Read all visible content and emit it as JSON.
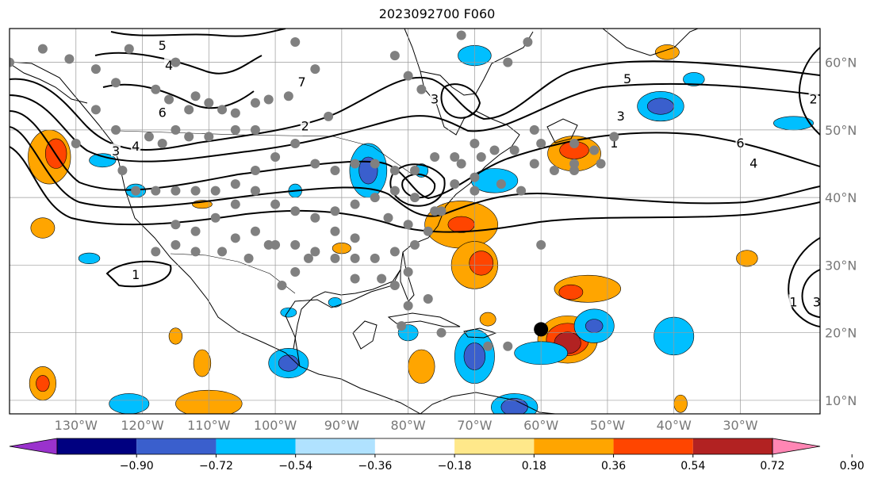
{
  "title": "2023092700 F060",
  "map": {
    "lon_range": [
      -140,
      -18
    ],
    "lat_range": [
      8,
      65
    ],
    "gridlines": true,
    "lon_labels": [
      "130°W",
      "120°W",
      "110°W",
      "100°W",
      "90°W",
      "80°W",
      "70°W",
      "60°W",
      "50°W",
      "40°W",
      "30°W"
    ],
    "lon_values": [
      -130,
      -120,
      -110,
      -100,
      -90,
      -80,
      -70,
      -60,
      -50,
      -40,
      -30
    ],
    "lat_labels": [
      "10°N",
      "20°N",
      "30°N",
      "40°N",
      "50°N",
      "60°N"
    ],
    "lat_values": [
      10,
      20,
      30,
      40,
      50,
      60
    ]
  },
  "contour_labels": [
    {
      "text": "5",
      "lon": -117,
      "lat": 62.4
    },
    {
      "text": "4",
      "lon": -116,
      "lat": 59.5
    },
    {
      "text": "6",
      "lon": -117,
      "lat": 52.5
    },
    {
      "text": "3",
      "lon": -124,
      "lat": 46.8
    },
    {
      "text": "4",
      "lon": -121,
      "lat": 47.5
    },
    {
      "text": "2",
      "lon": -95.5,
      "lat": 50.5
    },
    {
      "text": "7",
      "lon": -96,
      "lat": 57
    },
    {
      "text": "3",
      "lon": -76,
      "lat": 54.5
    },
    {
      "text": "5",
      "lon": -47,
      "lat": 57.5
    },
    {
      "text": "3",
      "lon": -48,
      "lat": 52
    },
    {
      "text": "1",
      "lon": -49,
      "lat": 48
    },
    {
      "text": "6",
      "lon": -30,
      "lat": 48
    },
    {
      "text": "4",
      "lon": -28,
      "lat": 45
    },
    {
      "text": "2",
      "lon": -19,
      "lat": 54.5
    },
    {
      "text": "1",
      "lon": -121,
      "lat": 28.5
    },
    {
      "text": "3",
      "lon": -18.5,
      "lat": 24.5
    },
    {
      "text": "1",
      "lon": -22,
      "lat": 24.5
    }
  ],
  "stations": [
    [
      -140,
      60
    ],
    [
      -135,
      62
    ],
    [
      -131,
      60.5
    ],
    [
      -127,
      59
    ],
    [
      -124,
      57
    ],
    [
      -122,
      62
    ],
    [
      -118,
      56
    ],
    [
      -115,
      60
    ],
    [
      -116,
      54.5
    ],
    [
      -112,
      55
    ],
    [
      -113,
      53
    ],
    [
      -110,
      54
    ],
    [
      -108,
      53
    ],
    [
      -106,
      52.5
    ],
    [
      -103,
      54
    ],
    [
      -101,
      54.5
    ],
    [
      -98,
      55
    ],
    [
      -97,
      63
    ],
    [
      -94,
      59
    ],
    [
      -92,
      52
    ],
    [
      -103,
      50
    ],
    [
      -106,
      50
    ],
    [
      -110,
      49
    ],
    [
      -113,
      49
    ],
    [
      -115,
      50
    ],
    [
      -117,
      48
    ],
    [
      -119,
      49
    ],
    [
      -124,
      50
    ],
    [
      -127,
      53
    ],
    [
      -130,
      48
    ],
    [
      -123,
      44
    ],
    [
      -121,
      41
    ],
    [
      -118,
      41
    ],
    [
      -115,
      41
    ],
    [
      -112,
      41
    ],
    [
      -109,
      41
    ],
    [
      -106,
      42
    ],
    [
      -103,
      44
    ],
    [
      -100,
      46
    ],
    [
      -97,
      48
    ],
    [
      -94,
      45
    ],
    [
      -91,
      44
    ],
    [
      -88,
      45
    ],
    [
      -85,
      45
    ],
    [
      -82,
      44
    ],
    [
      -79,
      44
    ],
    [
      -76,
      46
    ],
    [
      -73,
      46
    ],
    [
      -70,
      48
    ],
    [
      -67,
      47
    ],
    [
      -64,
      47
    ],
    [
      -61,
      45
    ],
    [
      -58,
      44
    ],
    [
      -55,
      45
    ],
    [
      -52,
      47
    ],
    [
      -49,
      49
    ],
    [
      -61,
      50
    ],
    [
      -55,
      48
    ],
    [
      -70,
      43
    ],
    [
      -73,
      42
    ],
    [
      -70,
      41
    ],
    [
      -76,
      38
    ],
    [
      -79,
      40
    ],
    [
      -82,
      41
    ],
    [
      -85,
      40
    ],
    [
      -88,
      39
    ],
    [
      -91,
      38
    ],
    [
      -94,
      37
    ],
    [
      -97,
      38
    ],
    [
      -100,
      39
    ],
    [
      -103,
      41
    ],
    [
      -106,
      39
    ],
    [
      -109,
      37
    ],
    [
      -112,
      35
    ],
    [
      -115,
      33
    ],
    [
      -118,
      32
    ],
    [
      -106,
      34
    ],
    [
      -103,
      35
    ],
    [
      -100,
      33
    ],
    [
      -97,
      33
    ],
    [
      -94,
      32
    ],
    [
      -91,
      31
    ],
    [
      -88,
      31
    ],
    [
      -85,
      31
    ],
    [
      -82,
      32
    ],
    [
      -79,
      33
    ],
    [
      -77,
      35
    ],
    [
      -75,
      38
    ],
    [
      -80,
      29
    ],
    [
      -82,
      27
    ],
    [
      -84,
      28
    ],
    [
      -88,
      34
    ],
    [
      -91,
      35
    ],
    [
      -95,
      31
    ],
    [
      -97,
      29
    ],
    [
      -99,
      27
    ],
    [
      -101,
      33
    ],
    [
      -104,
      31
    ],
    [
      -108,
      32
    ],
    [
      -112,
      32
    ],
    [
      -115,
      36
    ],
    [
      -88,
      28
    ],
    [
      -80,
      24
    ],
    [
      -77,
      25
    ],
    [
      -81,
      21
    ],
    [
      -75,
      20
    ],
    [
      -68,
      18
    ],
    [
      -65,
      18
    ],
    [
      -60,
      33
    ],
    [
      -55,
      44
    ],
    [
      -51,
      45
    ],
    [
      -83,
      37
    ],
    [
      -80,
      36
    ],
    [
      -72,
      45
    ],
    [
      -69,
      46
    ],
    [
      -66,
      42
    ],
    [
      -63,
      41
    ],
    [
      -60,
      48
    ],
    [
      -78,
      56
    ],
    [
      -72,
      64
    ],
    [
      -65,
      60
    ],
    [
      -62,
      63
    ],
    [
      -80,
      58
    ],
    [
      -82,
      61
    ]
  ],
  "marker": {
    "lon": -60,
    "lat": 20.5
  },
  "colorbar": {
    "ticks": [
      "−0.90",
      "−0.72",
      "−0.54",
      "−0.36",
      "−0.18",
      "0.18",
      "0.36",
      "0.54",
      "0.72",
      "0.90"
    ],
    "colors": [
      "#9a32cd",
      "#000080",
      "#3a5fcd",
      "#00bfff",
      "#b0e2ff",
      "#ffffff",
      "#ffe88a",
      "#ffa500",
      "#ff4500",
      "#b22222",
      "#ff86b4"
    ]
  },
  "anomalies": [
    {
      "color": "#ffa500",
      "lon": -134,
      "lat": 46,
      "rx": 3.2,
      "ry": 4
    },
    {
      "color": "#ff4500",
      "lon": -133,
      "lat": 46.5,
      "rx": 1.6,
      "ry": 2.2
    },
    {
      "color": "#ffa500",
      "lon": -135,
      "lat": 35.5,
      "rx": 1.8,
      "ry": 1.5
    },
    {
      "color": "#00bfff",
      "lon": -128,
      "lat": 31,
      "rx": 1.6,
      "ry": 0.8
    },
    {
      "color": "#00bfff",
      "lon": -126,
      "lat": 45.5,
      "rx": 2,
      "ry": 1
    },
    {
      "color": "#00bfff",
      "lon": -121,
      "lat": 41,
      "rx": 1.5,
      "ry": 1
    },
    {
      "color": "#ffa500",
      "lon": -111,
      "lat": 39,
      "rx": 1.5,
      "ry": 0.6
    },
    {
      "color": "#00bfff",
      "lon": -97,
      "lat": 41,
      "rx": 1,
      "ry": 1
    },
    {
      "color": "#00bfff",
      "lon": -86,
      "lat": 44,
      "rx": 2.8,
      "ry": 4
    },
    {
      "color": "#3a5fcd",
      "lon": -86,
      "lat": 44,
      "rx": 1.4,
      "ry": 2
    },
    {
      "color": "#00bfff",
      "lon": -78,
      "lat": 44,
      "rx": 1,
      "ry": 1
    },
    {
      "color": "#00bfff",
      "lon": -70,
      "lat": 61,
      "rx": 2.5,
      "ry": 1.5
    },
    {
      "color": "#ffa500",
      "lon": -41,
      "lat": 61.5,
      "rx": 1.8,
      "ry": 1.1
    },
    {
      "color": "#00bfff",
      "lon": -37,
      "lat": 57.5,
      "rx": 1.6,
      "ry": 1
    },
    {
      "color": "#00bfff",
      "lon": -42,
      "lat": 53.5,
      "rx": 3.5,
      "ry": 2.2
    },
    {
      "color": "#3a5fcd",
      "lon": -42,
      "lat": 53.5,
      "rx": 2,
      "ry": 1.2
    },
    {
      "color": "#00bfff",
      "lon": -22,
      "lat": 51,
      "rx": 3,
      "ry": 1
    },
    {
      "color": "#ffa500",
      "lon": -55,
      "lat": 46.5,
      "rx": 4,
      "ry": 2.6
    },
    {
      "color": "#ff4500",
      "lon": -55,
      "lat": 47,
      "rx": 2.2,
      "ry": 1.3
    },
    {
      "color": "#00bfff",
      "lon": -67,
      "lat": 42.5,
      "rx": 3.5,
      "ry": 1.8
    },
    {
      "color": "#ffa500",
      "lon": -72,
      "lat": 36,
      "rx": 5.5,
      "ry": 3.5
    },
    {
      "color": "#ff4500",
      "lon": -72,
      "lat": 36,
      "rx": 2,
      "ry": 1.2
    },
    {
      "color": "#ffa500",
      "lon": -70,
      "lat": 30,
      "rx": 3.5,
      "ry": 3.5
    },
    {
      "color": "#ff4500",
      "lon": -69,
      "lat": 30.3,
      "rx": 1.8,
      "ry": 1.8
    },
    {
      "color": "#ffa500",
      "lon": -68,
      "lat": 22,
      "rx": 1.2,
      "ry": 1
    },
    {
      "color": "#ffa500",
      "lon": -53,
      "lat": 26.5,
      "rx": 5,
      "ry": 2
    },
    {
      "color": "#ff4500",
      "lon": -55.5,
      "lat": 26,
      "rx": 1.8,
      "ry": 1.1
    },
    {
      "color": "#ffa500",
      "lon": -56,
      "lat": 19,
      "rx": 4.5,
      "ry": 3.5
    },
    {
      "color": "#ff4500",
      "lon": -56,
      "lat": 19,
      "rx": 3.2,
      "ry": 2.4
    },
    {
      "color": "#b22222",
      "lon": -56,
      "lat": 18.5,
      "rx": 2,
      "ry": 1.6
    },
    {
      "color": "#00bfff",
      "lon": -52,
      "lat": 21,
      "rx": 3,
      "ry": 2.5
    },
    {
      "color": "#3a5fcd",
      "lon": -52,
      "lat": 21,
      "rx": 1.3,
      "ry": 1
    },
    {
      "color": "#00bfff",
      "lon": -70,
      "lat": 16.5,
      "rx": 3,
      "ry": 4
    },
    {
      "color": "#3a5fcd",
      "lon": -70,
      "lat": 16.5,
      "rx": 1.6,
      "ry": 2
    },
    {
      "color": "#00bfff",
      "lon": -60,
      "lat": 17,
      "rx": 4,
      "ry": 1.7
    },
    {
      "color": "#ffa500",
      "lon": -78,
      "lat": 15,
      "rx": 2,
      "ry": 2.5
    },
    {
      "color": "#00bfff",
      "lon": -80,
      "lat": 20,
      "rx": 1.5,
      "ry": 1.2
    },
    {
      "color": "#00bfff",
      "lon": -98,
      "lat": 15.5,
      "rx": 3,
      "ry": 2.2
    },
    {
      "color": "#3a5fcd",
      "lon": -98,
      "lat": 15.5,
      "rx": 1.5,
      "ry": 1.2
    },
    {
      "color": "#00bfff",
      "lon": -40,
      "lat": 19.5,
      "rx": 3,
      "ry": 2.8
    },
    {
      "color": "#ffa500",
      "lon": -110,
      "lat": 9.5,
      "rx": 5,
      "ry": 2
    },
    {
      "color": "#ffa500",
      "lon": -135,
      "lat": 12.5,
      "rx": 2,
      "ry": 2.5
    },
    {
      "color": "#ff4500",
      "lon": -135,
      "lat": 12.5,
      "rx": 1,
      "ry": 1.2
    },
    {
      "color": "#00bfff",
      "lon": -122,
      "lat": 9.5,
      "rx": 3,
      "ry": 1.5
    },
    {
      "color": "#ffa500",
      "lon": -111,
      "lat": 15.5,
      "rx": 1.3,
      "ry": 2
    },
    {
      "color": "#ffa500",
      "lon": -115,
      "lat": 19.5,
      "rx": 1,
      "ry": 1.2
    },
    {
      "color": "#00bfff",
      "lon": -64,
      "lat": 9,
      "rx": 3.5,
      "ry": 2
    },
    {
      "color": "#3a5fcd",
      "lon": -64,
      "lat": 9,
      "rx": 2,
      "ry": 1.3
    },
    {
      "color": "#ffa500",
      "lon": -39,
      "lat": 9.5,
      "rx": 1,
      "ry": 1.3
    },
    {
      "color": "#ffa500",
      "lon": -29,
      "lat": 31,
      "rx": 1.6,
      "ry": 1.2
    },
    {
      "color": "#00bfff",
      "lon": -91,
      "lat": 24.5,
      "rx": 1,
      "ry": 0.7
    },
    {
      "color": "#00bfff",
      "lon": -98,
      "lat": 23,
      "rx": 1.2,
      "ry": 0.7
    },
    {
      "color": "#ffa500",
      "lon": -90,
      "lat": 32.5,
      "rx": 1.4,
      "ry": 0.8
    }
  ]
}
